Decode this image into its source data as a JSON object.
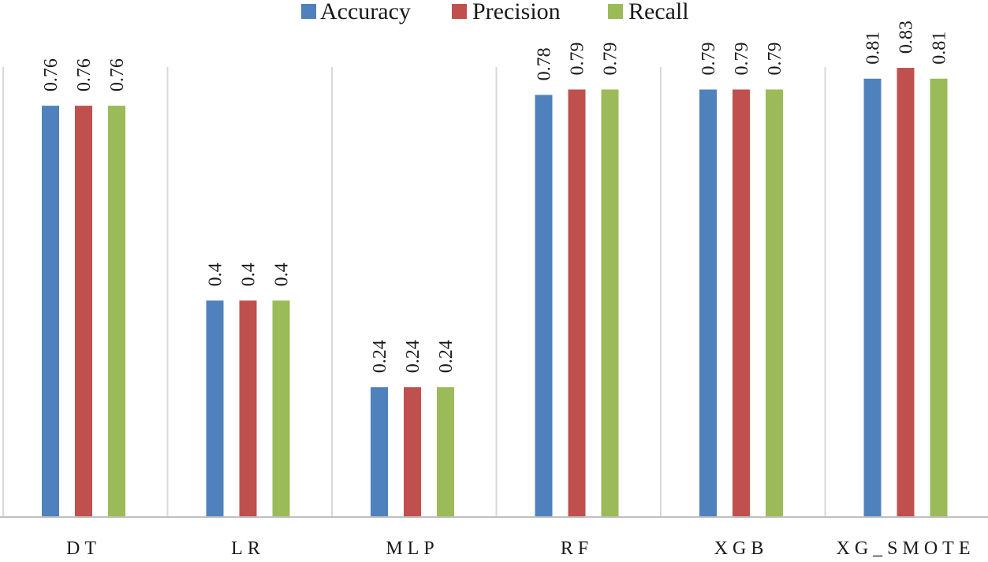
{
  "chart_data": {
    "type": "bar",
    "title": "",
    "xlabel": "",
    "ylabel": "",
    "ylim": [
      0,
      0.9
    ],
    "grid": "vertical separators between categories",
    "legend_position": "top-center",
    "categories": [
      "DT",
      "LR",
      "MLP",
      "RF",
      "XGB",
      "XG_SMOTE"
    ],
    "series": [
      {
        "name": "Accuracy",
        "color": "#4f81bd",
        "values": [
          0.76,
          0.4,
          0.24,
          0.78,
          0.79,
          0.81
        ],
        "labels": [
          "0.76",
          "0.4",
          "0.24",
          "0.78",
          "0.79",
          "0.81"
        ]
      },
      {
        "name": "Precision",
        "color": "#c0504d",
        "values": [
          0.76,
          0.4,
          0.24,
          0.79,
          0.79,
          0.83
        ],
        "labels": [
          "0.76",
          "0.4",
          "0.24",
          "0.79",
          "0.79",
          "0.83"
        ]
      },
      {
        "name": "Recall",
        "color": "#9bbb59",
        "values": [
          0.76,
          0.4,
          0.24,
          0.79,
          0.79,
          0.81
        ],
        "labels": [
          "0.76",
          "0.4",
          "0.24",
          "0.79",
          "0.79",
          "0.81"
        ]
      }
    ]
  },
  "colors": {
    "grid": "#d9d9d9",
    "axis": "#bfbfbf",
    "text": "#1a1a1a"
  }
}
